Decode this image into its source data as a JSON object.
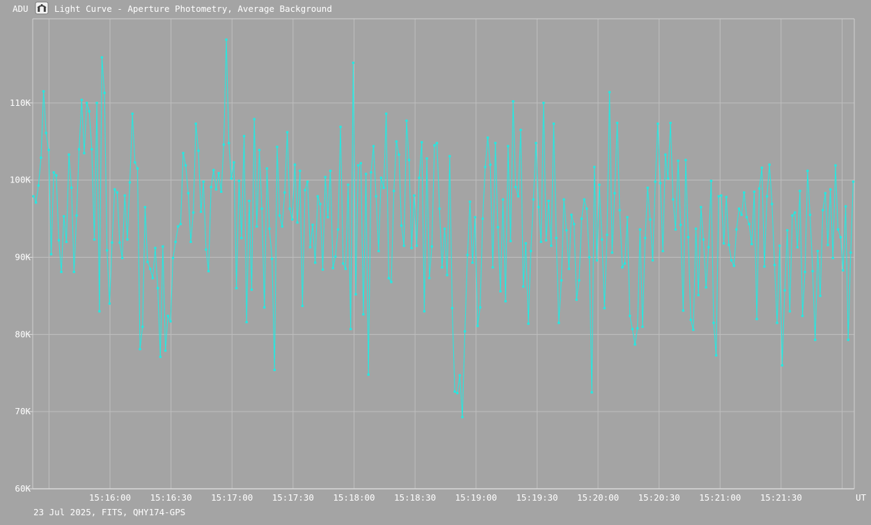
{
  "window": {
    "title": "Light Curve - Aperture Photometry, Average Background",
    "app_icon": "observatory-icon"
  },
  "footer": {
    "info": "23 Jul 2025, FITS, QHY174-GPS"
  },
  "colors": {
    "background": "#a4a4a4",
    "gridline": "#bfbfbf",
    "axis_border": "#cfcfcf",
    "axis_bottom": "#e2e2e2",
    "tick_mark": "#e2e2e2",
    "text": "#ffffff",
    "series": "#26e7e0",
    "icon_bg": "#f2f2f2",
    "icon_glyph": "#3c3c3c"
  },
  "chart_data": {
    "type": "line",
    "title": "Light Curve - Aperture Photometry, Average Background",
    "xlabel": "UT",
    "ylabel": "ADU",
    "legend": "none",
    "grid": true,
    "x_axis": {
      "unit": "UT",
      "start_time": "15:15:22",
      "end_time": "15:22:06",
      "gridline_interval_s": 30,
      "first_gridline_time": "15:15:30",
      "tick_labels": [
        "15:16:00",
        "15:16:30",
        "15:17:00",
        "15:17:30",
        "15:18:00",
        "15:18:30",
        "15:19:00",
        "15:19:30",
        "15:20:00",
        "15:20:30",
        "15:21:00",
        "15:21:30"
      ]
    },
    "y_axis": {
      "unit": "ADU",
      "min_kadu": 60,
      "max_kadu": 120.9,
      "tick_labels": [
        "110K",
        "100K",
        "90K",
        "80K",
        "70K",
        "60K"
      ],
      "tick_values_kadu": [
        110,
        100,
        90,
        80,
        70,
        60
      ]
    },
    "series": [
      {
        "name": "average-background-adu",
        "color": "#26e7e0",
        "marker": "square",
        "cadence_s": 1.25,
        "values_kadu": [
          97.9,
          97.1,
          99.3,
          102.9,
          111.5,
          106.1,
          103.9,
          90.4,
          101.0,
          100.6,
          92.2,
          88.1,
          95.3,
          92.0,
          103.3,
          99.0,
          88.1,
          95.4,
          104.0,
          110.4,
          103.5,
          110.0,
          108.9,
          104.0,
          92.3,
          110.0,
          83.0,
          115.9,
          111.3,
          90.9,
          84.0,
          91.9,
          98.8,
          98.4,
          91.9,
          89.9,
          98.0,
          92.3,
          99.7,
          108.6,
          102.3,
          101.5,
          78.1,
          81.0,
          96.5,
          89.4,
          88.5,
          87.3,
          91.2,
          86.0,
          77.1,
          91.4,
          77.9,
          82.4,
          81.7,
          89.9,
          92.0,
          94.0,
          94.3,
          103.5,
          101.9,
          98.3,
          92.0,
          95.8,
          107.3,
          103.8,
          95.9,
          99.8,
          91.0,
          88.2,
          99.1,
          101.3,
          98.8,
          100.9,
          98.5,
          104.6,
          118.2,
          104.8,
          100.2,
          102.3,
          86.0,
          99.9,
          92.5,
          105.7,
          81.6,
          97.3,
          85.8,
          107.9,
          94.0,
          103.9,
          96.3,
          83.5,
          101.5,
          93.7,
          89.8,
          75.4,
          104.3,
          95.4,
          94.0,
          98.4,
          106.2,
          96.3,
          94.9,
          102.0,
          94.5,
          101.2,
          83.7,
          98.7,
          99.8,
          91.3,
          94.2,
          89.3,
          97.9,
          96.9,
          88.4,
          100.4,
          95.2,
          101.2,
          88.6,
          90.1,
          93.6,
          106.9,
          89.2,
          88.5,
          99.4,
          80.7,
          115.2,
          85.2,
          101.9,
          102.2,
          82.6,
          100.8,
          74.8,
          101.0,
          104.4,
          97.9,
          90.8,
          100.3,
          99.0,
          108.6,
          87.3,
          86.8,
          98.6,
          105.0,
          103.3,
          94.1,
          91.5,
          107.7,
          102.6,
          91.2,
          98.0,
          91.5,
          100.3,
          104.9,
          83.0,
          102.8,
          87.3,
          91.4,
          104.5,
          104.8,
          96.3,
          88.7,
          93.7,
          87.7,
          103.1,
          83.4,
          72.6,
          72.4,
          74.7,
          69.3,
          80.4,
          90.3,
          97.2,
          89.3,
          95.2,
          81.1,
          83.5,
          95.0,
          101.7,
          105.5,
          102.0,
          88.7,
          104.8,
          93.9,
          85.6,
          97.5,
          84.3,
          104.4,
          92.1,
          110.2,
          99.1,
          97.9,
          106.5,
          86.2,
          91.8,
          81.4,
          90.8,
          97.5,
          104.8,
          96.5,
          92.0,
          110.0,
          92.2,
          97.3,
          91.5,
          107.3,
          92.5,
          81.5,
          87.0,
          97.5,
          93.5,
          88.5,
          95.5,
          94.3,
          84.5,
          87.0,
          95.0,
          97.5,
          96.3,
          90.0,
          72.5,
          101.7,
          89.6,
          99.4,
          92.3,
          83.4,
          92.9,
          111.4,
          90.6,
          98.3,
          107.4,
          96.1,
          88.7,
          89.2,
          95.2,
          82.4,
          80.7,
          78.7,
          80.8,
          93.6,
          81.0,
          92.5,
          99.0,
          94.9,
          89.6,
          99.8,
          107.3,
          99.6,
          90.8,
          103.3,
          100.2,
          107.4,
          97.5,
          93.6,
          102.5,
          94.2,
          83.1,
          102.6,
          92.6,
          81.9,
          80.6,
          93.7,
          85.1,
          96.5,
          92.3,
          86.1,
          91.3,
          99.9,
          81.5,
          77.3,
          97.9,
          98.0,
          91.8,
          97.8,
          91.6,
          89.6,
          88.9,
          93.6,
          96.3,
          95.5,
          98.4,
          95.2,
          94.3,
          91.7,
          98.5,
          82.0,
          98.9,
          101.6,
          88.8,
          97.9,
          102.0,
          96.9,
          89.0,
          81.5,
          91.5,
          76.0,
          85.7,
          93.5,
          83.0,
          95.4,
          95.8,
          91.3,
          98.6,
          82.4,
          88.1,
          101.2,
          95.5,
          88.2,
          79.3,
          90.8,
          85.0,
          96.1,
          98.3,
          91.6,
          98.8,
          89.9,
          101.9,
          93.6,
          92.6,
          88.3,
          96.6,
          79.3,
          90.6,
          99.8
        ]
      }
    ]
  }
}
